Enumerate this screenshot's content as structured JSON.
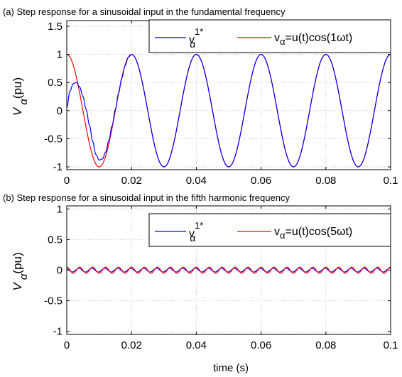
{
  "figure": {
    "xlabel": "time (s)",
    "colors": {
      "blue": "#0000ff",
      "red": "#ff0000",
      "axis": "#000000",
      "grid": "#bdbdbd"
    }
  },
  "chart_data": [
    {
      "type": "line",
      "title": "(a) Step response for a sinusoidal input in the fundamental frequency",
      "ylabel": "V_α (pu)",
      "xlabel": "",
      "xlim": [
        0,
        0.1
      ],
      "ylim": [
        -1.05,
        1.6
      ],
      "xticks": [
        0,
        0.02,
        0.04,
        0.06,
        0.08,
        0.1
      ],
      "xtick_labels": [
        "0",
        "0.02",
        "0.04",
        "0.06",
        "0.08",
        "0.1"
      ],
      "yticks": [
        -1,
        -0.5,
        0,
        0.5,
        1,
        1.5
      ],
      "ytick_labels": [
        "-1",
        "-0.5",
        "0",
        "0.5",
        "1",
        "1.5"
      ],
      "grid": true,
      "legend_position": "top-right",
      "series": [
        {
          "name": "vα1*",
          "color": "#0000ff",
          "x": [
            0,
            0.001,
            0.002,
            0.003,
            0.004,
            0.005,
            0.006,
            0.007,
            0.008,
            0.009,
            0.01,
            0.011,
            0.012,
            0.013,
            0.014,
            0.015,
            0.016,
            0.017,
            0.018,
            0.019,
            0.02,
            0.025,
            0.03,
            0.035,
            0.04,
            0.045,
            0.05,
            0.055,
            0.06,
            0.065,
            0.07,
            0.075,
            0.08,
            0.085,
            0.09,
            0.095,
            0.1
          ],
          "y": [
            0.05,
            0.35,
            0.48,
            0.5,
            0.42,
            0.25,
            0.02,
            -0.26,
            -0.55,
            -0.78,
            -0.88,
            -0.86,
            -0.74,
            -0.53,
            -0.27,
            0.02,
            0.31,
            0.58,
            0.8,
            0.95,
            1.0,
            0.0,
            -1.0,
            0.0,
            1.0,
            0.0,
            -1.0,
            0.0,
            1.0,
            0.0,
            -1.0,
            0.0,
            1.0,
            0.0,
            -1.0,
            0.0,
            1.0
          ]
        },
        {
          "name": "vα=u(t)cos(1ωt)",
          "color": "#ff0000",
          "x": [
            0,
            0.0025,
            0.005,
            0.0075,
            0.01,
            0.0125,
            0.015,
            0.0175,
            0.02,
            0.025,
            0.03,
            0.035,
            0.04,
            0.045,
            0.05,
            0.055,
            0.06,
            0.065,
            0.07,
            0.075,
            0.08,
            0.085,
            0.09,
            0.095,
            0.1
          ],
          "y": [
            1.0,
            0.707,
            0.0,
            -0.707,
            -1.0,
            -0.707,
            0.0,
            0.707,
            1.0,
            0.0,
            -1.0,
            0.0,
            1.0,
            0.0,
            -1.0,
            0.0,
            1.0,
            0.0,
            -1.0,
            0.0,
            1.0,
            0.0,
            -1.0,
            0.0,
            1.0
          ]
        }
      ]
    },
    {
      "type": "line",
      "title": "(b) Step response for a sinusoidal input in the fifth harmonic frequency",
      "ylabel": "V_α (pu)",
      "xlabel": "time (s)",
      "xlim": [
        0,
        0.1
      ],
      "ylim": [
        -1.05,
        1.05
      ],
      "xticks": [
        0,
        0.02,
        0.04,
        0.06,
        0.08,
        0.1
      ],
      "xtick_labels": [
        "0",
        "0.02",
        "0.04",
        "0.06",
        "0.08",
        "0.1"
      ],
      "yticks": [
        -1,
        -0.5,
        0,
        0.5,
        1
      ],
      "ytick_labels": [
        "-1",
        "-0.5",
        "0",
        "0.5",
        "1"
      ],
      "grid": true,
      "legend_position": "top-right",
      "series": [
        {
          "name": "vα1*",
          "color": "#0000ff",
          "amplitude": 0.03,
          "x": [
            0,
            0.002,
            0.004,
            0.006,
            0.008,
            0.01,
            0.012,
            0.014,
            0.016,
            0.018,
            0.02
          ],
          "y": [
            0.03,
            -0.03,
            0.03,
            -0.03,
            0.03,
            -0.03,
            0.03,
            -0.03,
            0.03,
            -0.03,
            0.03
          ]
        },
        {
          "name": "vα=u(t)cos(5ωt)",
          "color": "#ff0000",
          "amplitude": 0.05,
          "x": [
            0,
            0.002,
            0.004,
            0.006,
            0.008,
            0.01,
            0.012,
            0.014,
            0.016,
            0.018,
            0.02
          ],
          "y": [
            0.05,
            -0.05,
            0.05,
            -0.05,
            0.05,
            -0.05,
            0.05,
            -0.05,
            0.05,
            -0.05,
            0.05
          ]
        }
      ]
    }
  ]
}
